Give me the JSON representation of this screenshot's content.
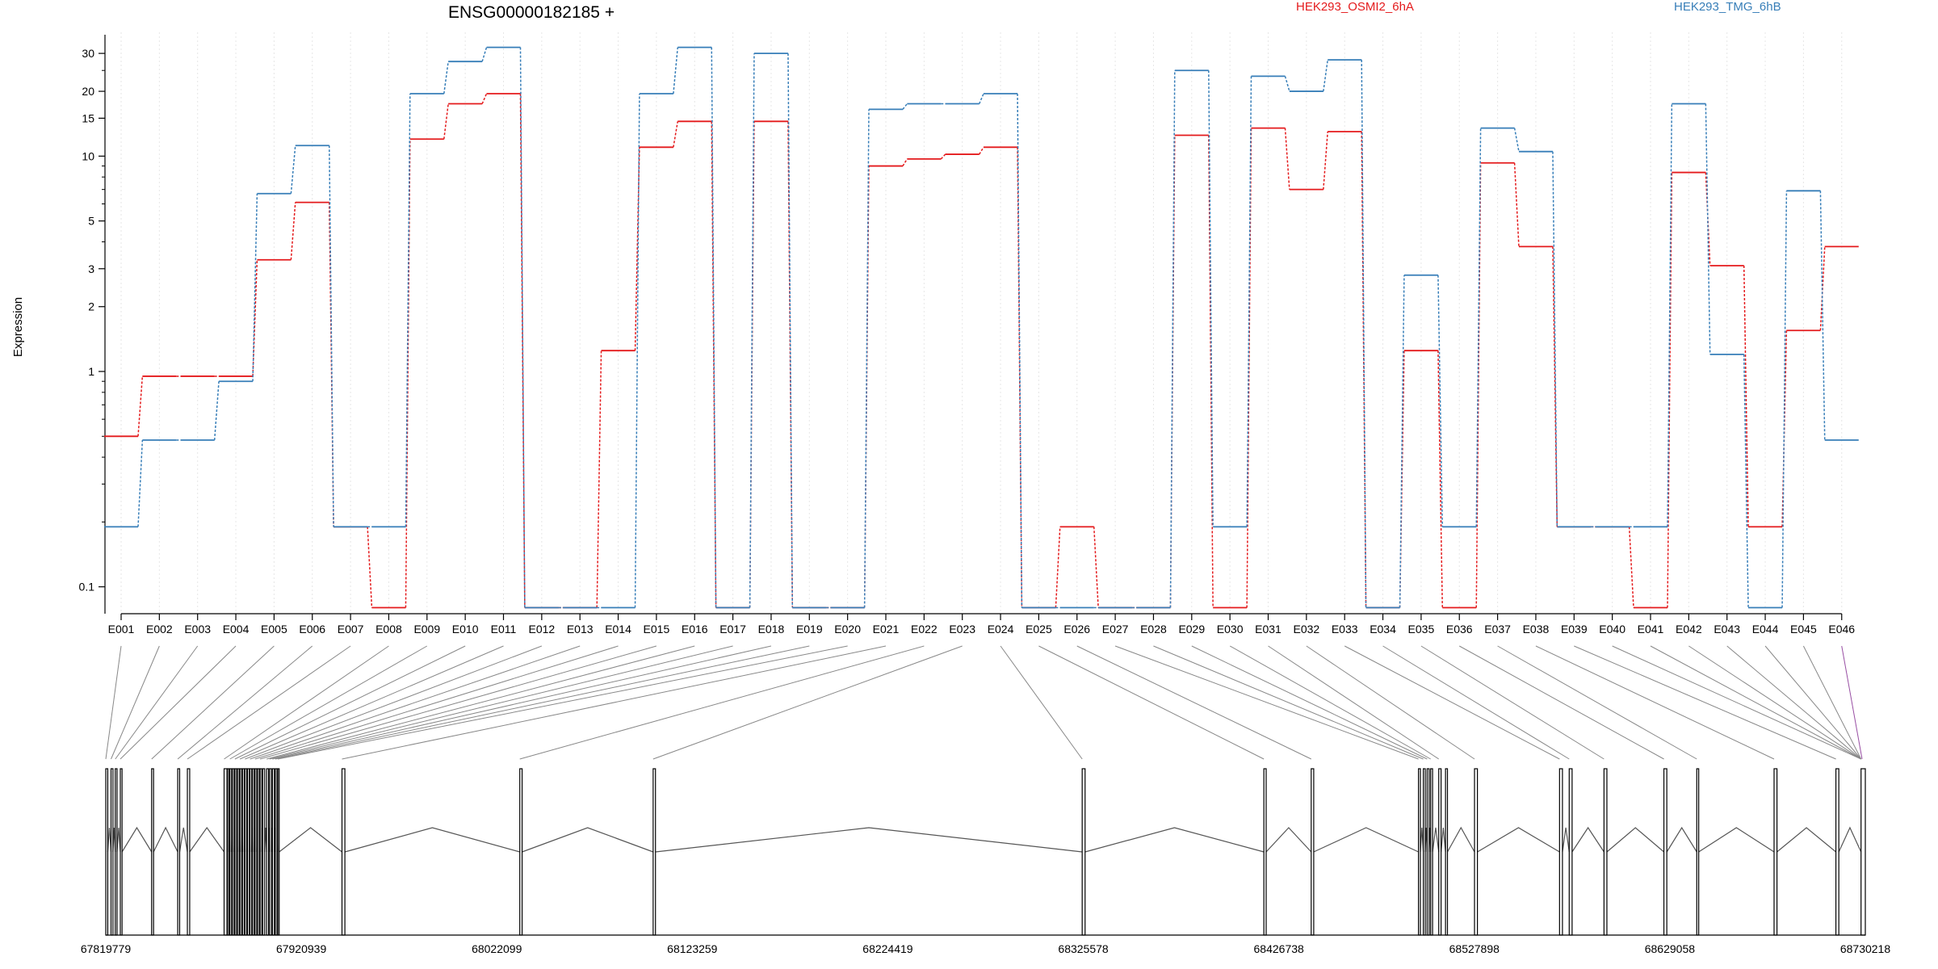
{
  "chart_data": {
    "type": "line",
    "title": "ENSG00000182185 +",
    "ylabel": "Expression",
    "xlabel": "",
    "yscale": "log",
    "ylim": [
      0.075,
      36
    ],
    "yticks": [
      0.1,
      1,
      2,
      3,
      5,
      10,
      15,
      20,
      30
    ],
    "grid": "vertical dotted lines at each exon",
    "legend_position": "top",
    "categories": [
      "E001",
      "E002",
      "E003",
      "E004",
      "E005",
      "E006",
      "E007",
      "E008",
      "E009",
      "E010",
      "E011",
      "E012",
      "E013",
      "E014",
      "E015",
      "E016",
      "E017",
      "E018",
      "E019",
      "E020",
      "E021",
      "E022",
      "E023",
      "E024",
      "E025",
      "E026",
      "E027",
      "E028",
      "E029",
      "E030",
      "E031",
      "E032",
      "E033",
      "E034",
      "E035",
      "E036",
      "E037",
      "E038",
      "E039",
      "E040",
      "E041",
      "E042",
      "E043",
      "E044",
      "E045",
      "E046"
    ],
    "series": [
      {
        "name": "HEK293_OSMI2_6hA",
        "color": "#e41a1c",
        "values": [
          0.5,
          0.95,
          0.95,
          0.95,
          3.3,
          6.1,
          0.19,
          0.08,
          12,
          17.5,
          19.5,
          0.08,
          0.08,
          1.25,
          11,
          14.5,
          0.08,
          14.5,
          0.08,
          0.08,
          9,
          9.7,
          10.2,
          11,
          0.08,
          0.19,
          0.08,
          0.08,
          12.5,
          0.08,
          13.5,
          7,
          13,
          0.08,
          1.25,
          0.08,
          9.3,
          3.8,
          0.19,
          0.19,
          0.08,
          8.4,
          3.1,
          0.19,
          1.55,
          3.8
        ]
      },
      {
        "name": "HEK293_TMG_6hB",
        "color": "#377eb8",
        "values": [
          0.19,
          0.48,
          0.48,
          0.9,
          6.7,
          11.2,
          0.19,
          0.19,
          19.5,
          27.5,
          32,
          0.08,
          0.08,
          0.08,
          19.5,
          32,
          0.08,
          30,
          0.08,
          0.08,
          16.5,
          17.5,
          17.5,
          19.5,
          0.08,
          0.08,
          0.08,
          0.08,
          25,
          0.19,
          23.5,
          20,
          28,
          0.08,
          2.8,
          0.19,
          13.5,
          10.5,
          0.19,
          0.19,
          0.19,
          17.5,
          1.2,
          0.08,
          6.9,
          0.48
        ]
      }
    ],
    "genome": {
      "axis_ticks": [
        "67819779",
        "67920939",
        "68022099",
        "68123259",
        "68224419",
        "68325578",
        "68426738",
        "68527898",
        "68629058",
        "68730218"
      ],
      "start": 67819779,
      "end": 68730218,
      "exons": [
        {
          "start": 67819779,
          "end": 67820800
        },
        {
          "start": 67822500,
          "end": 67823500
        },
        {
          "start": 67824700,
          "end": 67825600
        },
        {
          "start": 67827300,
          "end": 67828200
        },
        {
          "start": 67843500,
          "end": 67844500
        },
        {
          "start": 67857000,
          "end": 67858000
        },
        {
          "start": 67862000,
          "end": 67863200
        },
        {
          "start": 67881000,
          "end": 67882500
        },
        {
          "start": 67882800,
          "end": 67883600
        },
        {
          "start": 67884000,
          "end": 67884900
        },
        {
          "start": 67885300,
          "end": 67886200
        },
        {
          "start": 67886600,
          "end": 67887500
        },
        {
          "start": 67887900,
          "end": 67888800
        },
        {
          "start": 67889200,
          "end": 67890100
        },
        {
          "start": 67890500,
          "end": 67891400
        },
        {
          "start": 67891800,
          "end": 67892700
        },
        {
          "start": 67893100,
          "end": 67894000
        },
        {
          "start": 67894400,
          "end": 67895300
        },
        {
          "start": 67895700,
          "end": 67896600
        },
        {
          "start": 67897000,
          "end": 67897900
        },
        {
          "start": 67898300,
          "end": 67899200
        },
        {
          "start": 67899600,
          "end": 67900500
        },
        {
          "start": 67901000,
          "end": 67902000
        },
        {
          "start": 67903000,
          "end": 67904000
        },
        {
          "start": 67904500,
          "end": 67905500
        },
        {
          "start": 67906000,
          "end": 67907000
        },
        {
          "start": 67907500,
          "end": 67908400
        },
        {
          "start": 67908800,
          "end": 67909500
        },
        {
          "start": 67942000,
          "end": 67943500
        },
        {
          "start": 68034000,
          "end": 68035200
        },
        {
          "start": 68103000,
          "end": 68104200
        },
        {
          "start": 68325000,
          "end": 68326500
        },
        {
          "start": 68419000,
          "end": 68420200
        },
        {
          "start": 68443500,
          "end": 68444800
        },
        {
          "start": 68499000,
          "end": 68500000
        },
        {
          "start": 68501500,
          "end": 68502500
        },
        {
          "start": 68503500,
          "end": 68504500
        },
        {
          "start": 68505300,
          "end": 68506300
        },
        {
          "start": 68509500,
          "end": 68510700
        },
        {
          "start": 68513000,
          "end": 68514000
        },
        {
          "start": 68528000,
          "end": 68529500
        },
        {
          "start": 68572000,
          "end": 68573500
        },
        {
          "start": 68577000,
          "end": 68578500
        },
        {
          "start": 68595000,
          "end": 68596500
        },
        {
          "start": 68626000,
          "end": 68627500
        },
        {
          "start": 68643000,
          "end": 68644000
        },
        {
          "start": 68683000,
          "end": 68684500
        },
        {
          "start": 68715000,
          "end": 68716500
        },
        {
          "start": 68728000,
          "end": 68730218
        }
      ],
      "exon_bins": [
        {
          "start": 67819779,
          "end": 67820800
        },
        {
          "start": 67822500,
          "end": 67823500
        },
        {
          "start": 67824700,
          "end": 67825600
        },
        {
          "start": 67827300,
          "end": 67828200
        },
        {
          "start": 67843500,
          "end": 67844500
        },
        {
          "start": 67857000,
          "end": 67858000
        },
        {
          "start": 67862000,
          "end": 67863200
        },
        {
          "start": 67881000,
          "end": 67882500
        },
        {
          "start": 67884000,
          "end": 67884900
        },
        {
          "start": 67886600,
          "end": 67887500
        },
        {
          "start": 67889200,
          "end": 67890100
        },
        {
          "start": 67891800,
          "end": 67892700
        },
        {
          "start": 67894400,
          "end": 67895300
        },
        {
          "start": 67897000,
          "end": 67897900
        },
        {
          "start": 67899600,
          "end": 67900500
        },
        {
          "start": 67903000,
          "end": 67904000
        },
        {
          "start": 67904500,
          "end": 67905500
        },
        {
          "start": 67906000,
          "end": 67907000
        },
        {
          "start": 67907500,
          "end": 67908400
        },
        {
          "start": 67908800,
          "end": 67909500
        },
        {
          "start": 67942000,
          "end": 67943500
        },
        {
          "start": 68034000,
          "end": 68035200
        },
        {
          "start": 68103000,
          "end": 68104200
        },
        {
          "start": 68325000,
          "end": 68326500
        },
        {
          "start": 68419000,
          "end": 68420200
        },
        {
          "start": 68443500,
          "end": 68444800
        },
        {
          "start": 68499000,
          "end": 68500000
        },
        {
          "start": 68501500,
          "end": 68502500
        },
        {
          "start": 68503500,
          "end": 68504500
        },
        {
          "start": 68505300,
          "end": 68506300
        },
        {
          "start": 68509500,
          "end": 68510700
        },
        {
          "start": 68528000,
          "end": 68529500
        },
        {
          "start": 68572000,
          "end": 68573500
        },
        {
          "start": 68577000,
          "end": 68578500
        },
        {
          "start": 68595000,
          "end": 68596500
        },
        {
          "start": 68626000,
          "end": 68627500
        },
        {
          "start": 68643000,
          "end": 68644000
        },
        {
          "start": 68683000,
          "end": 68684500
        },
        {
          "start": 68715000,
          "end": 68716500
        },
        {
          "start": 68728000,
          "end": 68730218
        }
      ],
      "highlight_color": "#984ea3"
    }
  }
}
